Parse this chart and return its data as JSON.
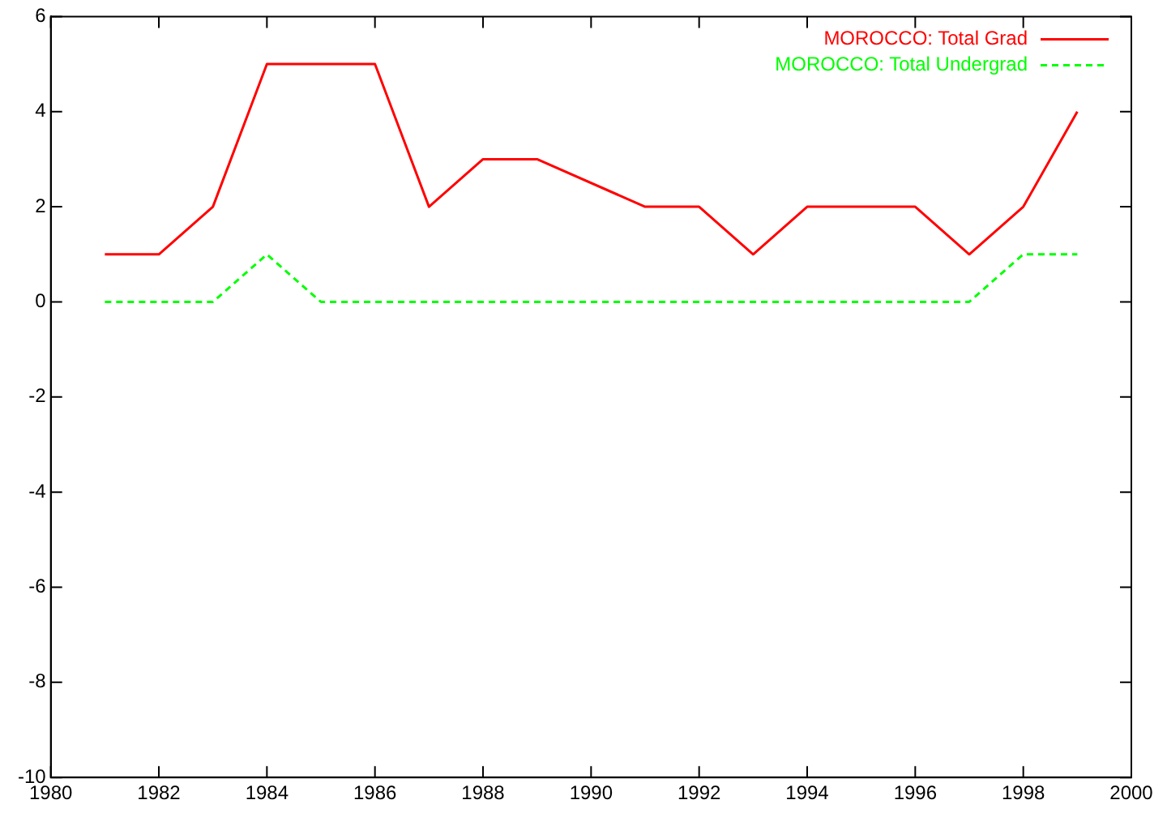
{
  "chart_data": {
    "type": "line",
    "xlim": [
      1980,
      2000
    ],
    "xticks": [
      1980,
      1982,
      1984,
      1986,
      1988,
      1990,
      1992,
      1994,
      1996,
      1998,
      2000
    ],
    "ylim": [
      -10,
      6
    ],
    "yticks": [
      -10,
      -8,
      -6,
      -4,
      -2,
      0,
      2,
      4,
      6
    ],
    "grid": false,
    "legend": "top right",
    "marker": "none",
    "series": [
      {
        "name": "MOROCCO: Total Grad",
        "color": "#ff0000",
        "line_style": "solid",
        "x": [
          1981,
          1982,
          1983,
          1984,
          1985,
          1986,
          1987,
          1988,
          1989,
          1991,
          1992,
          1993,
          1994,
          1995,
          1996,
          1997,
          1998,
          1999
        ],
        "values": [
          1,
          1,
          2,
          5,
          5,
          5,
          2,
          3,
          3,
          2,
          2,
          1,
          2,
          2,
          2,
          1,
          2,
          4
        ]
      },
      {
        "name": "MOROCCO: Total Undergrad",
        "color": "#00ff00",
        "line_style": "dashed",
        "x": [
          1981,
          1982,
          1983,
          1984,
          1985,
          1986,
          1987,
          1988,
          1989,
          1990,
          1991,
          1992,
          1993,
          1994,
          1995,
          1996,
          1997,
          1998,
          1999
        ],
        "values": [
          0,
          0,
          0,
          1,
          0,
          0,
          0,
          0,
          0,
          0,
          0,
          0,
          0,
          0,
          0,
          0,
          0,
          1,
          1
        ]
      }
    ]
  }
}
